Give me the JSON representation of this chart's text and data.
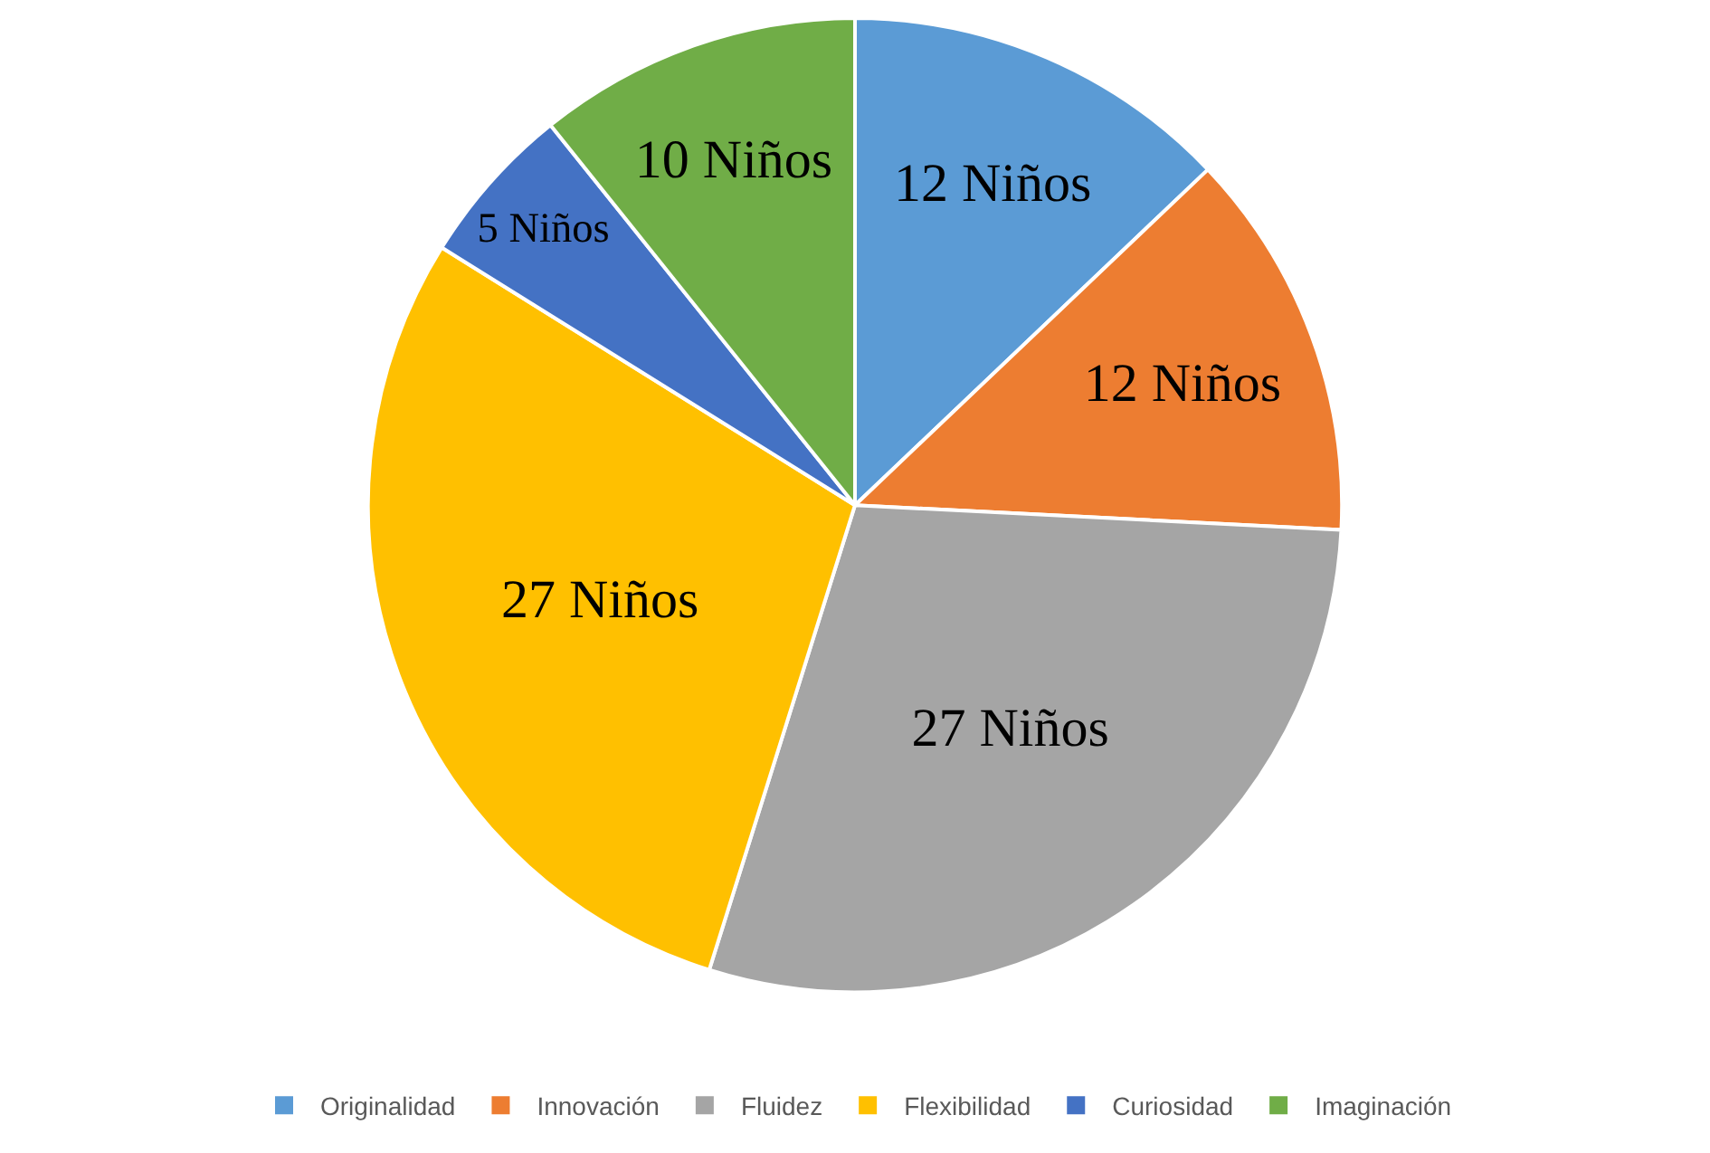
{
  "chart_data": {
    "type": "pie",
    "categories": [
      "Originalidad",
      "Innovación",
      "Fluidez",
      "Flexibilidad",
      "Curiosidad",
      "Imaginación"
    ],
    "values": [
      12,
      12,
      27,
      27,
      5,
      10
    ],
    "colors": [
      "#5b9bd5",
      "#ed7d31",
      "#a5a5a5",
      "#ffc000",
      "#4472c4",
      "#70ad47"
    ],
    "value_labels": [
      "12 Niños",
      "12 Niños",
      "27 Niños",
      "27 Niños",
      "5 Niños",
      "10 Niños"
    ],
    "legend": "bottom"
  }
}
